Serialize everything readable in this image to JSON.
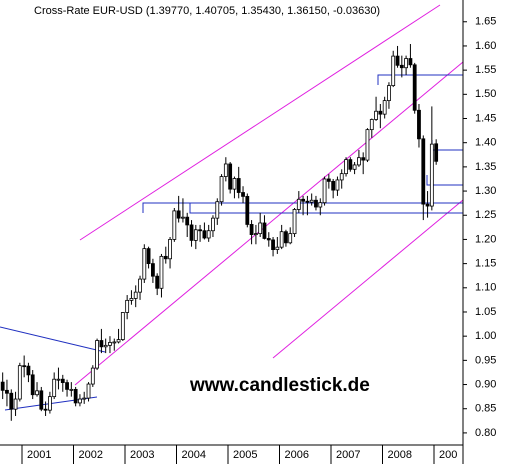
{
  "chart_data": {
    "type": "candlestick",
    "title": "Cross-Rate  EUR-USD (1.39770, 1.40705, 1.35430, 1.36150, -0.03630)",
    "annotation": "www.candlestick.de",
    "up_color": "#ffffff",
    "down_color": "#000000",
    "xlim": [
      2000.573,
      2009.563
    ],
    "xticks": [
      2001,
      2002,
      2003,
      2004,
      2005,
      2006,
      2007,
      2008,
      {
        "value": 2009,
        "label": "200"
      }
    ],
    "ylim": [
      0.775,
      1.695
    ],
    "yticks": [
      {
        "value": 0.8,
        "label": "0.80"
      },
      0.85,
      {
        "value": 0.9,
        "label": "0.90"
      },
      0.95,
      {
        "value": 1.0,
        "label": "1.00"
      },
      1.05,
      {
        "value": 1.1,
        "label": "1.10"
      },
      1.15,
      {
        "value": 1.2,
        "label": "1.20"
      },
      1.25,
      {
        "value": 1.3,
        "label": "1.30"
      },
      1.35,
      {
        "value": 1.4,
        "label": "1.40"
      },
      1.45,
      {
        "value": 1.5,
        "label": "1.50"
      },
      1.55,
      {
        "value": 1.6,
        "label": "1.60"
      },
      1.65
    ],
    "x": [
      2000.625,
      2000.708,
      2000.792,
      2000.875,
      2000.958,
      2001.042,
      2001.125,
      2001.208,
      2001.292,
      2001.375,
      2001.458,
      2001.542,
      2001.625,
      2001.708,
      2001.792,
      2001.875,
      2001.958,
      2002.042,
      2002.125,
      2002.208,
      2002.292,
      2002.375,
      2002.458,
      2002.542,
      2002.625,
      2002.708,
      2002.792,
      2002.875,
      2002.958,
      2003.042,
      2003.125,
      2003.208,
      2003.292,
      2003.375,
      2003.458,
      2003.542,
      2003.625,
      2003.708,
      2003.792,
      2003.875,
      2003.958,
      2004.042,
      2004.125,
      2004.208,
      2004.292,
      2004.375,
      2004.458,
      2004.542,
      2004.625,
      2004.708,
      2004.792,
      2004.875,
      2004.958,
      2005.042,
      2005.125,
      2005.208,
      2005.292,
      2005.375,
      2005.458,
      2005.542,
      2005.625,
      2005.708,
      2005.792,
      2005.875,
      2005.958,
      2006.042,
      2006.125,
      2006.208,
      2006.292,
      2006.375,
      2006.458,
      2006.542,
      2006.625,
      2006.708,
      2006.792,
      2006.875,
      2006.958,
      2007.042,
      2007.125,
      2007.208,
      2007.292,
      2007.375,
      2007.458,
      2007.542,
      2007.625,
      2007.708,
      2007.792,
      2007.875,
      2007.958,
      2008.042,
      2008.125,
      2008.208,
      2008.292,
      2008.375,
      2008.458,
      2008.542,
      2008.625,
      2008.708,
      2008.792,
      2008.875,
      2008.958,
      2009.042
    ],
    "open": [
      0.905,
      0.888,
      0.882,
      0.849,
      0.87,
      0.939,
      0.938,
      0.92,
      0.879,
      0.887,
      0.849,
      0.847,
      0.875,
      0.911,
      0.911,
      0.904,
      0.89,
      0.89,
      0.862,
      0.87,
      0.872,
      0.901,
      0.934,
      0.991,
      0.978,
      0.981,
      0.987,
      0.988,
      0.993,
      1.049,
      1.074,
      1.078,
      1.091,
      1.118,
      1.181,
      1.15,
      1.124,
      1.099,
      1.165,
      1.16,
      1.2,
      1.259,
      1.244,
      1.246,
      1.23,
      1.198,
      1.22,
      1.218,
      1.203,
      1.218,
      1.244,
      1.278,
      1.33,
      1.356,
      1.304,
      1.326,
      1.297,
      1.289,
      1.231,
      1.21,
      1.212,
      1.234,
      1.202,
      1.199,
      1.179,
      1.184,
      1.216,
      1.193,
      1.212,
      1.262,
      1.283,
      1.279,
      1.277,
      1.281,
      1.267,
      1.276,
      1.325,
      1.32,
      1.302,
      1.323,
      1.336,
      1.365,
      1.345,
      1.354,
      1.369,
      1.364,
      1.427,
      1.448,
      1.465,
      1.459,
      1.487,
      1.518,
      1.579,
      1.56,
      1.555,
      1.574,
      1.561,
      1.467,
      1.408,
      1.273,
      1.269,
      1.3977
    ],
    "high": [
      0.925,
      0.91,
      0.89,
      0.885,
      0.945,
      0.96,
      0.945,
      0.93,
      0.905,
      0.895,
      0.865,
      0.885,
      0.925,
      0.935,
      0.92,
      0.91,
      0.905,
      0.895,
      0.88,
      0.885,
      0.905,
      0.94,
      0.995,
      1.015,
      0.995,
      1.0,
      0.995,
      1.015,
      1.05,
      1.085,
      1.095,
      1.105,
      1.125,
      1.19,
      1.185,
      1.16,
      1.13,
      1.17,
      1.185,
      1.205,
      1.265,
      1.29,
      1.285,
      1.255,
      1.24,
      1.23,
      1.23,
      1.235,
      1.23,
      1.25,
      1.285,
      1.335,
      1.37,
      1.36,
      1.33,
      1.35,
      1.31,
      1.295,
      1.24,
      1.23,
      1.255,
      1.25,
      1.215,
      1.205,
      1.205,
      1.23,
      1.22,
      1.225,
      1.265,
      1.3,
      1.29,
      1.29,
      1.295,
      1.29,
      1.285,
      1.33,
      1.335,
      1.325,
      1.33,
      1.345,
      1.37,
      1.37,
      1.36,
      1.385,
      1.38,
      1.43,
      1.45,
      1.495,
      1.48,
      1.495,
      1.525,
      1.59,
      1.6,
      1.58,
      1.58,
      1.604,
      1.565,
      1.48,
      1.415,
      1.3,
      1.475,
      1.40705
    ],
    "low": [
      0.87,
      0.855,
      0.825,
      0.835,
      0.865,
      0.915,
      0.905,
      0.87,
      0.875,
      0.845,
      0.835,
      0.84,
      0.87,
      0.89,
      0.885,
      0.875,
      0.875,
      0.855,
      0.855,
      0.86,
      0.865,
      0.895,
      0.93,
      0.965,
      0.965,
      0.965,
      0.97,
      0.985,
      0.99,
      1.035,
      1.065,
      1.06,
      1.075,
      1.11,
      1.14,
      1.11,
      1.085,
      1.08,
      1.15,
      1.14,
      1.195,
      1.235,
      1.235,
      1.205,
      1.185,
      1.18,
      1.195,
      1.2,
      1.195,
      1.205,
      1.23,
      1.27,
      1.32,
      1.295,
      1.285,
      1.285,
      1.275,
      1.225,
      1.19,
      1.19,
      1.205,
      1.2,
      1.185,
      1.165,
      1.17,
      1.18,
      1.185,
      1.19,
      1.205,
      1.255,
      1.25,
      1.25,
      1.27,
      1.26,
      1.25,
      1.27,
      1.305,
      1.285,
      1.29,
      1.305,
      1.33,
      1.34,
      1.335,
      1.35,
      1.335,
      1.36,
      1.41,
      1.445,
      1.43,
      1.45,
      1.47,
      1.515,
      1.555,
      1.535,
      1.54,
      1.555,
      1.46,
      1.39,
      1.24,
      1.245,
      1.26,
      1.3543
    ],
    "close": [
      0.888,
      0.882,
      0.849,
      0.87,
      0.939,
      0.938,
      0.92,
      0.879,
      0.887,
      0.849,
      0.847,
      0.875,
      0.911,
      0.911,
      0.904,
      0.89,
      0.89,
      0.862,
      0.87,
      0.872,
      0.901,
      0.934,
      0.991,
      0.978,
      0.981,
      0.987,
      0.988,
      0.993,
      1.049,
      1.074,
      1.078,
      1.091,
      1.118,
      1.181,
      1.15,
      1.124,
      1.099,
      1.165,
      1.16,
      1.2,
      1.259,
      1.244,
      1.246,
      1.23,
      1.198,
      1.22,
      1.218,
      1.203,
      1.218,
      1.244,
      1.278,
      1.33,
      1.356,
      1.304,
      1.326,
      1.297,
      1.289,
      1.231,
      1.21,
      1.212,
      1.234,
      1.202,
      1.199,
      1.179,
      1.184,
      1.216,
      1.193,
      1.212,
      1.262,
      1.283,
      1.279,
      1.277,
      1.281,
      1.267,
      1.276,
      1.325,
      1.32,
      1.302,
      1.323,
      1.336,
      1.365,
      1.345,
      1.354,
      1.369,
      1.364,
      1.427,
      1.448,
      1.465,
      1.459,
      1.487,
      1.518,
      1.579,
      1.56,
      1.555,
      1.574,
      1.561,
      1.467,
      1.408,
      1.273,
      1.269,
      1.397,
      1.3615
    ]
  }
}
